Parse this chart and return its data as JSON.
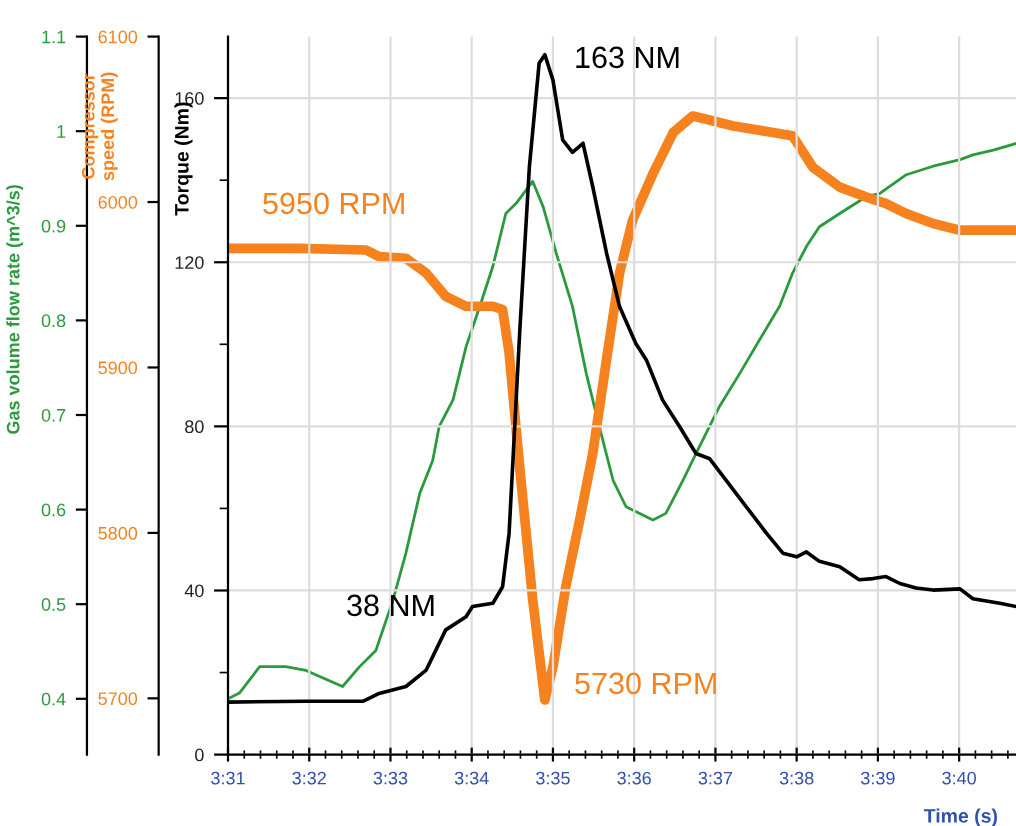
{
  "chart_data": {
    "type": "line",
    "xlabel": "Time (s)",
    "ylabel": "Torque (Nm)",
    "y2label": "Gas volume flow rate (m^3/s)",
    "y3label": "Compressor\nspeed (RPM)",
    "xlim": [
      211,
      220.7
    ],
    "xticks": [
      {
        "value": 211,
        "label": "3:31"
      },
      {
        "value": 211.2,
        "label": null
      },
      {
        "value": 211.4,
        "label": null
      },
      {
        "value": 211.6,
        "label": null
      },
      {
        "value": 211.8,
        "label": null
      },
      {
        "value": 212,
        "label": "3:32"
      },
      {
        "value": 212.2,
        "label": null
      },
      {
        "value": 212.4,
        "label": null
      },
      {
        "value": 212.6,
        "label": null
      },
      {
        "value": 212.8,
        "label": null
      },
      {
        "value": 213,
        "label": "3:33"
      },
      {
        "value": 213.2,
        "label": null
      },
      {
        "value": 213.4,
        "label": null
      },
      {
        "value": 213.6,
        "label": null
      },
      {
        "value": 213.8,
        "label": null
      },
      {
        "value": 214,
        "label": "3:34"
      },
      {
        "value": 214.2,
        "label": null
      },
      {
        "value": 214.4,
        "label": null
      },
      {
        "value": 214.6,
        "label": null
      },
      {
        "value": 214.8,
        "label": null
      },
      {
        "value": 215,
        "label": "3:35"
      },
      {
        "value": 215.2,
        "label": null
      },
      {
        "value": 215.4,
        "label": null
      },
      {
        "value": 215.6,
        "label": null
      },
      {
        "value": 215.8,
        "label": null
      },
      {
        "value": 216,
        "label": "3:36"
      },
      {
        "value": 216.2,
        "label": null
      },
      {
        "value": 216.4,
        "label": null
      },
      {
        "value": 216.6,
        "label": null
      },
      {
        "value": 216.8,
        "label": null
      },
      {
        "value": 217,
        "label": "3:37"
      },
      {
        "value": 217.2,
        "label": null
      },
      {
        "value": 217.4,
        "label": null
      },
      {
        "value": 217.6,
        "label": null
      },
      {
        "value": 217.8,
        "label": null
      },
      {
        "value": 218,
        "label": "3:38"
      },
      {
        "value": 218.2,
        "label": null
      },
      {
        "value": 218.4,
        "label": null
      },
      {
        "value": 218.6,
        "label": null
      },
      {
        "value": 218.8,
        "label": null
      },
      {
        "value": 219,
        "label": "3:39"
      },
      {
        "value": 219.2,
        "label": null
      },
      {
        "value": 219.4,
        "label": null
      },
      {
        "value": 219.6,
        "label": null
      },
      {
        "value": 219.8,
        "label": null
      },
      {
        "value": 220,
        "label": "3:40"
      },
      {
        "value": 220.2,
        "label": null
      },
      {
        "value": 220.4,
        "label": null
      },
      {
        "value": 220.6,
        "label": null
      }
    ],
    "ylim": [
      0,
      175
    ],
    "yticks": [
      0,
      {
        "value": 20,
        "label": null
      },
      40,
      {
        "value": 60,
        "label": null
      },
      80,
      {
        "value": 100,
        "label": null
      },
      120,
      {
        "value": 140,
        "label": null
      },
      160
    ],
    "y2lim": [
      0.341,
      1.1
    ],
    "y2ticks": [
      0.4,
      0.5,
      0.6,
      0.7,
      0.8,
      0.9,
      1,
      1.1
    ],
    "y3lim": [
      5666,
      6100
    ],
    "y3ticks": [
      5700,
      5800,
      5900,
      6000,
      6100
    ],
    "grid": true,
    "legend": false,
    "marker": "none",
    "line_style": "solid",
    "annotations": [
      "163 NM",
      "5950 RPM",
      "38 NM",
      "5730 RPM"
    ],
    "series": [
      {
        "axis": "y2",
        "color": "#2a9a3c",
        "x": [
          211.0,
          211.14,
          211.39,
          211.71,
          211.96,
          212.41,
          212.62,
          212.82,
          213.03,
          213.19,
          213.36,
          213.52,
          213.6,
          213.77,
          213.93,
          214.1,
          214.26,
          214.42,
          214.55,
          214.75,
          214.88,
          215.04,
          215.24,
          215.41,
          215.57,
          215.74,
          215.9,
          216.23,
          216.39,
          216.6,
          216.8,
          217.05,
          217.3,
          217.54,
          217.79,
          217.95,
          218.12,
          218.28,
          218.53,
          218.86,
          219.02,
          219.35,
          219.68,
          220.01,
          220.17,
          220.42,
          220.7
        ],
        "values": [
          0.4,
          0.406,
          0.434,
          0.434,
          0.43,
          0.413,
          0.434,
          0.451,
          0.504,
          0.554,
          0.617,
          0.652,
          0.688,
          0.716,
          0.772,
          0.815,
          0.857,
          0.913,
          0.924,
          0.947,
          0.92,
          0.871,
          0.815,
          0.744,
          0.688,
          0.631,
          0.603,
          0.589,
          0.596,
          0.631,
          0.666,
          0.709,
          0.744,
          0.779,
          0.815,
          0.85,
          0.878,
          0.899,
          0.913,
          0.931,
          0.934,
          0.954,
          0.963,
          0.97,
          0.975,
          0.98,
          0.987
        ]
      },
      {
        "axis": "y3",
        "color": "#f5821f",
        "x": [
          211.0,
          211.88,
          212.7,
          212.86,
          213.19,
          213.44,
          213.68,
          213.93,
          214.26,
          214.38,
          214.46,
          214.59,
          214.75,
          214.9,
          215.0,
          215.16,
          215.33,
          215.49,
          215.66,
          215.82,
          215.98,
          216.23,
          216.48,
          216.72,
          216.89,
          217.22,
          217.71,
          217.95,
          218.2,
          218.53,
          218.86,
          219.1,
          219.35,
          219.68,
          220.01,
          220.7
        ],
        "values": [
          5972,
          5972,
          5971,
          5967,
          5966,
          5957,
          5943,
          5937,
          5937,
          5935,
          5909,
          5840,
          5760,
          5699,
          5719,
          5768,
          5808,
          5848,
          5905,
          5957,
          5989,
          6017,
          6042,
          6052,
          6050,
          6046,
          6042,
          6040,
          6021,
          6009,
          6003,
          5999,
          5993,
          5987,
          5983,
          5983
        ]
      },
      {
        "axis": "y",
        "color": "#000000",
        "x": [
          211.0,
          211.96,
          212.66,
          212.86,
          213.19,
          213.44,
          213.68,
          213.93,
          214.01,
          214.26,
          214.38,
          214.46,
          214.59,
          214.71,
          214.83,
          214.9,
          215.0,
          215.12,
          215.24,
          215.37,
          215.49,
          215.66,
          215.82,
          216.02,
          216.15,
          216.35,
          216.56,
          216.76,
          216.93,
          217.13,
          217.38,
          217.63,
          217.83,
          218.0,
          218.12,
          218.28,
          218.53,
          218.77,
          218.94,
          219.1,
          219.27,
          219.47,
          219.68,
          220.01,
          220.17,
          220.5,
          220.7
        ],
        "values": [
          12.8,
          13.0,
          13.0,
          14.9,
          16.6,
          20.6,
          30.4,
          33.6,
          36.1,
          36.9,
          40.9,
          53.9,
          102.7,
          143.3,
          168.5,
          170.6,
          164.4,
          149.8,
          146.8,
          149.0,
          138.4,
          122.2,
          109.2,
          100.2,
          96.2,
          86.4,
          79.9,
          73.4,
          72.1,
          66.9,
          60.4,
          53.9,
          49.1,
          48.2,
          49.4,
          47.1,
          45.8,
          42.6,
          42.9,
          43.4,
          41.7,
          40.6,
          40.1,
          40.4,
          38.0,
          36.9,
          36.1
        ]
      }
    ]
  }
}
